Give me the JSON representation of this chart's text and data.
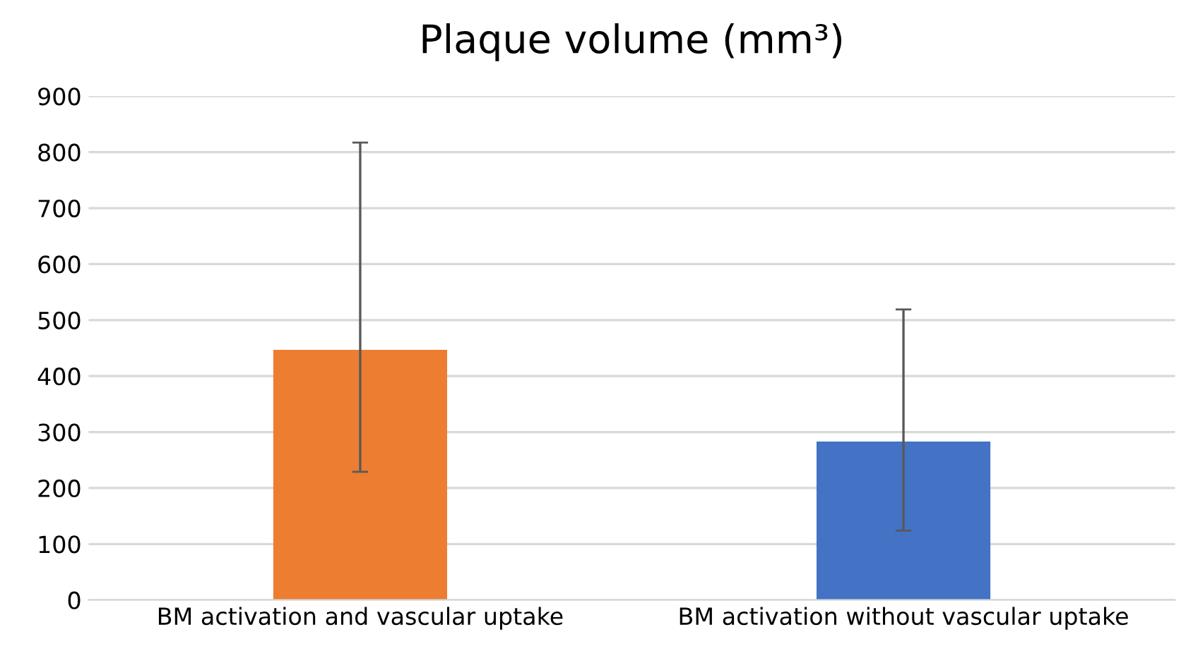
{
  "chart_data": {
    "type": "bar",
    "title": "Plaque volume (mm³)",
    "categories": [
      "BM activation and vascular uptake",
      "BM activation without vascular uptake"
    ],
    "values": [
      447,
      283
    ],
    "colors": [
      "#ed7d31",
      "#4472c4"
    ],
    "errors": [
      [
        229,
        817
      ],
      [
        124,
        519
      ]
    ],
    "ylim": [
      0,
      900
    ],
    "yticks": [
      0,
      100,
      200,
      300,
      400,
      500,
      600,
      700,
      800,
      900
    ],
    "grid": "y"
  }
}
